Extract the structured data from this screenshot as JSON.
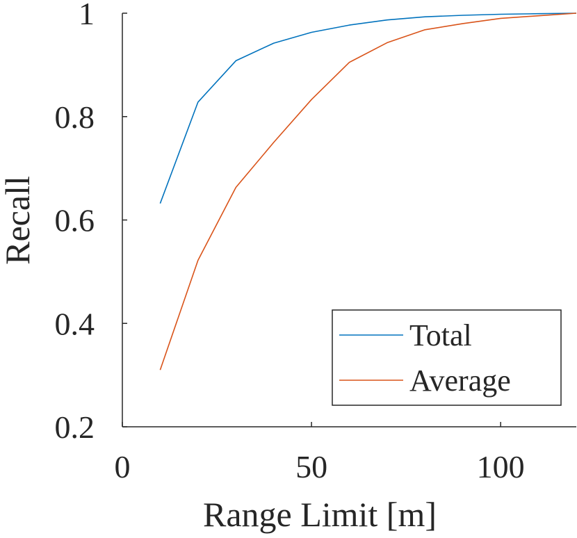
{
  "chart_data": {
    "type": "line",
    "title": "",
    "xlabel": "Range Limit [m]",
    "ylabel": "Recall",
    "xlim": [
      0,
      120
    ],
    "ylim": [
      0.2,
      1.0
    ],
    "x_ticks": [
      0,
      50,
      100
    ],
    "x_tick_labels": [
      "0",
      "50",
      "100"
    ],
    "y_ticks": [
      0.2,
      0.4,
      0.6,
      0.8,
      1.0
    ],
    "y_tick_labels": [
      "0.2",
      "0.4",
      "0.6",
      "0.8",
      "1"
    ],
    "grid": false,
    "legend_position": "bottom-right",
    "x": [
      10,
      20,
      30,
      40,
      50,
      60,
      70,
      80,
      90,
      100,
      110,
      120
    ],
    "series": [
      {
        "name": "Total",
        "color": "#0072BD",
        "values": [
          0.632,
          0.828,
          0.908,
          0.942,
          0.963,
          0.977,
          0.987,
          0.993,
          0.996,
          0.998,
          0.999,
          1.0
        ]
      },
      {
        "name": "Average",
        "color": "#D95319",
        "values": [
          0.31,
          0.522,
          0.663,
          0.75,
          0.833,
          0.905,
          0.943,
          0.968,
          0.98,
          0.99,
          0.995,
          1.0
        ]
      }
    ]
  }
}
